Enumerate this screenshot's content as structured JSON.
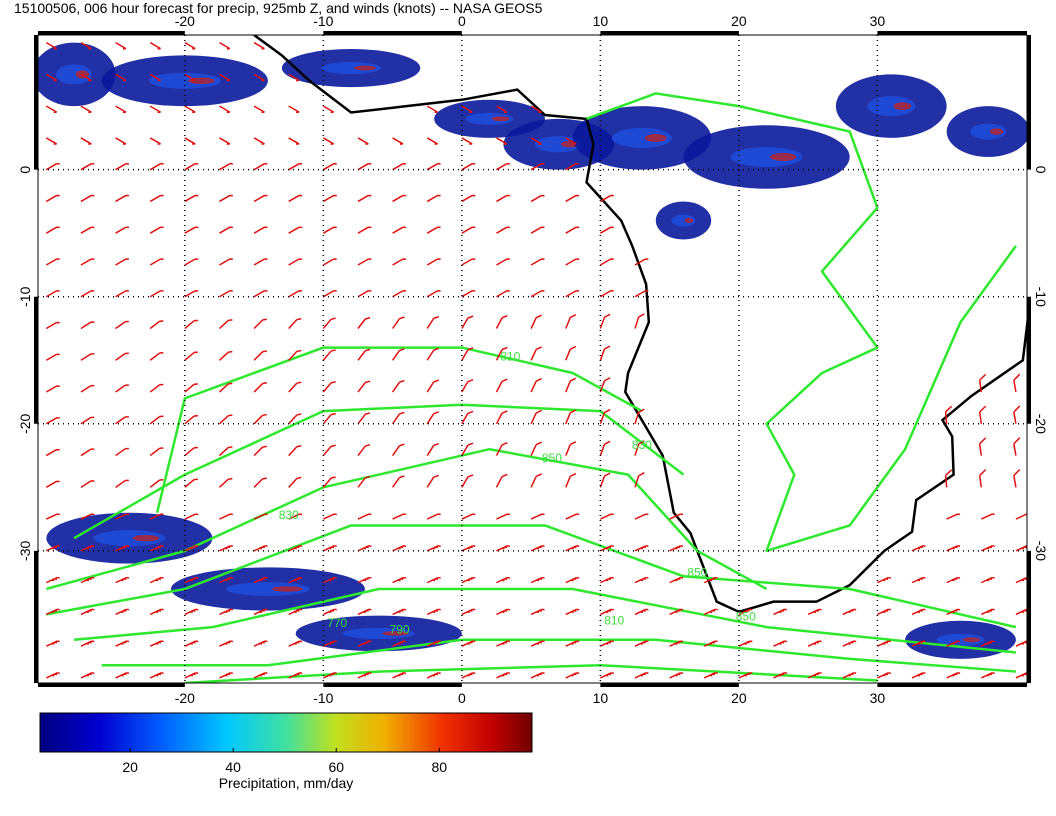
{
  "chart_data": {
    "type": "map",
    "title": "15100506, 006 hour forecast for precip, 925mb Z, and winds (knots) -- NASA GEOS5",
    "xlim": [
      -30.6,
      40.8
    ],
    "ylim": [
      -40.4,
      10.6
    ],
    "xticks": [
      -20,
      -10,
      0,
      10,
      20,
      30
    ],
    "yticks": [
      0,
      -10,
      -20,
      -30
    ],
    "grid": true,
    "contour_labels": [
      {
        "label": "810",
        "x": 3.5,
        "y": -15
      },
      {
        "label": "850",
        "x": 6.5,
        "y": -23
      },
      {
        "label": "830",
        "x": 13,
        "y": -22
      },
      {
        "label": "830",
        "x": -12.5,
        "y": -27.5
      },
      {
        "label": "850",
        "x": 17,
        "y": -32
      },
      {
        "label": "850",
        "x": 20.5,
        "y": -35.5
      },
      {
        "label": "810",
        "x": 11,
        "y": -35.8
      },
      {
        "label": "790",
        "x": -4.5,
        "y": -36.5
      },
      {
        "label": "770",
        "x": -9,
        "y": -36
      }
    ],
    "colorbar": {
      "label": "Precipitation, mm/day",
      "lim": [
        2.5,
        98
      ],
      "ticks": [
        20,
        40,
        60,
        80
      ]
    }
  }
}
